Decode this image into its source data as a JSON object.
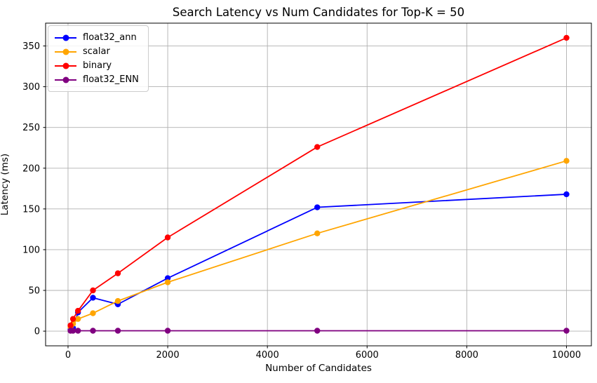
{
  "chart_data": {
    "type": "line",
    "title": "Search Latency vs Num Candidates for Top-K = 50",
    "xlabel": "Number of Candidates",
    "ylabel": "Latency (ms)",
    "x": [
      50,
      100,
      200,
      500,
      1000,
      2000,
      5000,
      10000
    ],
    "series": [
      {
        "name": "float32_ann",
        "color": "#0000FF",
        "values": [
          2,
          4,
          23,
          41,
          33,
          65,
          152,
          168
        ]
      },
      {
        "name": "scalar",
        "color": "#FFA500",
        "values": [
          5,
          9,
          15,
          22,
          37,
          60,
          120,
          209
        ]
      },
      {
        "name": "binary",
        "color": "#FF0000",
        "values": [
          7,
          15,
          25,
          50,
          71,
          115,
          226,
          360
        ]
      },
      {
        "name": "float32_ENN",
        "color": "#800080",
        "values": [
          0.5,
          0.5,
          0.5,
          0.5,
          0.5,
          0.5,
          0.5,
          0.5
        ]
      }
    ],
    "x_ticks": [
      0,
      2000,
      4000,
      6000,
      8000,
      10000
    ],
    "y_ticks": [
      0,
      50,
      100,
      150,
      200,
      250,
      300,
      350
    ],
    "xlim": [
      -450,
      10500
    ],
    "ylim": [
      -18,
      378
    ],
    "grid": true,
    "grid_color": "#B0B0B0",
    "spine_color": "#000000",
    "background": "#FFFFFF",
    "legend_position": "upper left"
  }
}
